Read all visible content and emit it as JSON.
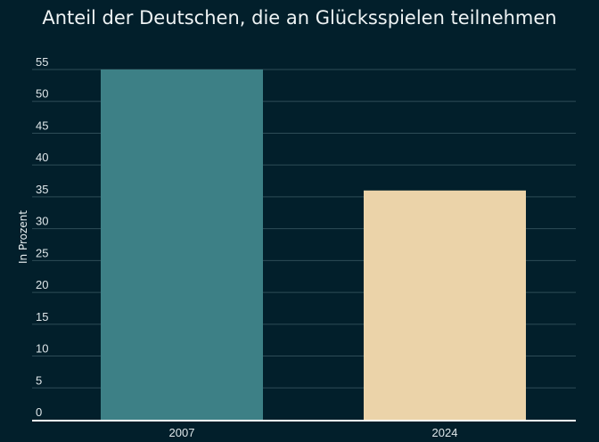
{
  "chart_data": {
    "type": "bar",
    "title": "Anteil der Deutschen, die an Glücksspielen teilnehmen",
    "xlabel": "",
    "ylabel": "In Prozent",
    "categories": [
      "2007",
      "2024"
    ],
    "values": [
      55,
      36
    ],
    "colors": [
      "#3d8086",
      "#ebd3a9"
    ],
    "ylim": [
      0,
      55
    ],
    "yticks": [
      0,
      5,
      10,
      15,
      20,
      25,
      30,
      35,
      40,
      45,
      50,
      55
    ],
    "grid": true,
    "legend": "none"
  }
}
